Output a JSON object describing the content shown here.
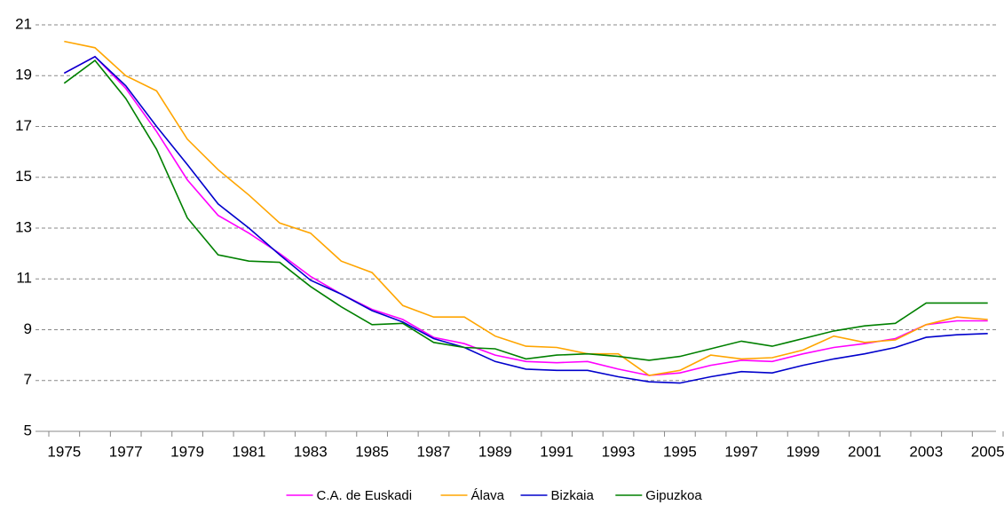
{
  "chart_data": {
    "type": "line",
    "categories": [
      "1975",
      null,
      "1977",
      null,
      "1979",
      null,
      "1981",
      null,
      "1983",
      null,
      "1985",
      null,
      "1987",
      null,
      "1989",
      null,
      "1991",
      null,
      "1993",
      null,
      "1995",
      null,
      "1997",
      null,
      "1999",
      null,
      "2001",
      null,
      "2003",
      null,
      "2005"
    ],
    "series": [
      {
        "name": "C.A. de Euskadi",
        "color": "#ff00ff",
        "values": [
          19.1,
          19.75,
          18.5,
          16.8,
          14.9,
          13.5,
          12.8,
          12.0,
          11.1,
          10.4,
          9.8,
          9.4,
          8.7,
          8.45,
          8.0,
          7.75,
          7.7,
          7.75,
          7.45,
          7.2,
          7.3,
          7.6,
          7.8,
          7.75,
          8.05,
          8.3,
          8.45,
          8.65,
          9.2,
          9.35,
          9.35
        ]
      },
      {
        "name": "Álava",
        "color": "#ffa500",
        "values": [
          20.35,
          20.1,
          19.0,
          18.4,
          16.5,
          15.3,
          14.3,
          13.2,
          12.8,
          11.7,
          11.25,
          9.95,
          9.5,
          9.5,
          8.75,
          8.35,
          8.3,
          8.05,
          8.05,
          7.2,
          7.4,
          8.0,
          7.85,
          7.9,
          8.2,
          8.75,
          8.5,
          8.6,
          9.2,
          9.5,
          9.4
        ]
      },
      {
        "name": "Bizkaia",
        "color": "#0000cc",
        "values": [
          19.1,
          19.75,
          18.6,
          17.0,
          15.5,
          13.95,
          13.0,
          11.95,
          10.95,
          10.4,
          9.75,
          9.3,
          8.65,
          8.3,
          7.75,
          7.45,
          7.4,
          7.4,
          7.15,
          6.95,
          6.9,
          7.15,
          7.35,
          7.3,
          7.6,
          7.85,
          8.05,
          8.3,
          8.7,
          8.8,
          8.85
        ]
      },
      {
        "name": "Gipuzkoa",
        "color": "#008000",
        "values": [
          18.7,
          19.6,
          18.1,
          16.1,
          13.4,
          11.95,
          11.7,
          11.65,
          10.7,
          9.9,
          9.2,
          9.25,
          8.5,
          8.3,
          8.25,
          7.85,
          8.0,
          8.05,
          7.95,
          7.8,
          7.95,
          8.25,
          8.55,
          8.35,
          8.65,
          8.95,
          9.15,
          9.25,
          10.05,
          10.05,
          10.05
        ]
      }
    ],
    "ylim": [
      5,
      21
    ],
    "yticks": [
      5,
      7,
      9,
      11,
      13,
      15,
      17,
      19,
      21
    ],
    "grid": true
  }
}
